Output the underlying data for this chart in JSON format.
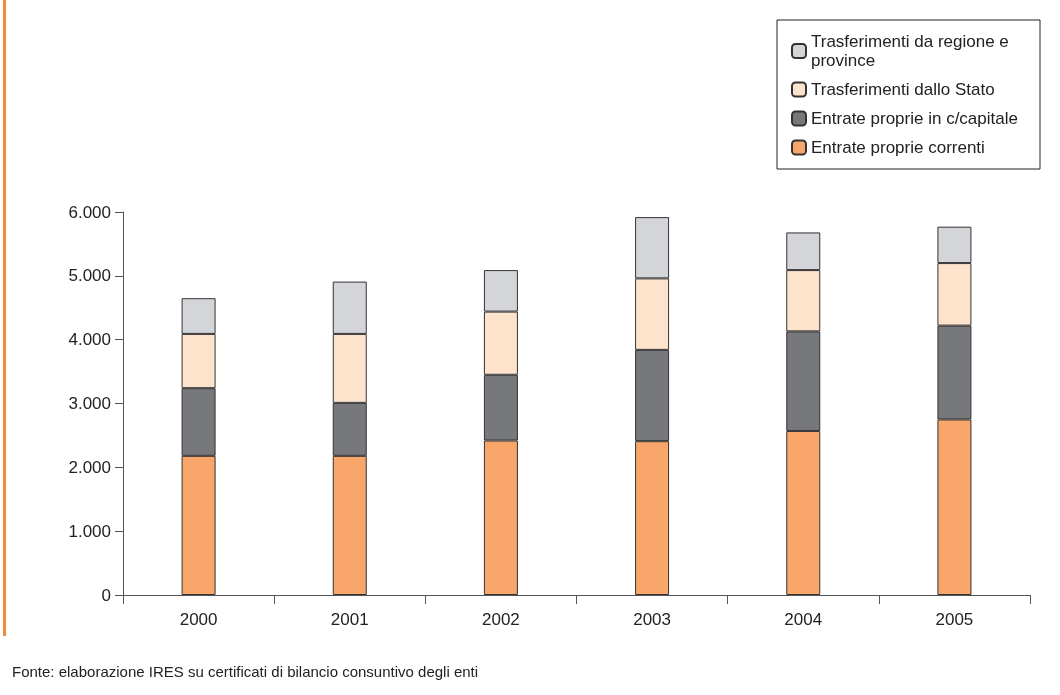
{
  "chart_data": {
    "type": "bar",
    "stacked": true,
    "categories": [
      "2000",
      "2001",
      "2002",
      "2003",
      "2004",
      "2005"
    ],
    "series": [
      {
        "name": "Entrate proprie correnti",
        "color": "#f9a66b",
        "values": [
          2180,
          2180,
          2420,
          2410,
          2570,
          2750
        ]
      },
      {
        "name": "Entrate proprie in c/capitale",
        "color": "#77787b",
        "values": [
          1060,
          830,
          1030,
          1430,
          1560,
          1470
        ]
      },
      {
        "name": "Trasferimenti dallo Stato",
        "color": "#fde3cc",
        "values": [
          850,
          1080,
          990,
          1120,
          960,
          980
        ]
      },
      {
        "name": "Trasferimenti da regione e province",
        "color": "#d3d5d8",
        "values": [
          560,
          820,
          650,
          960,
          590,
          570
        ]
      }
    ],
    "ylim": [
      0,
      6000
    ],
    "yticks": [
      {
        "value": 0,
        "label": "0"
      },
      {
        "value": 1000,
        "label": "1.000"
      },
      {
        "value": 2000,
        "label": "2.000"
      },
      {
        "value": 3000,
        "label": "3.000"
      },
      {
        "value": 4000,
        "label": "4.000"
      },
      {
        "value": 5000,
        "label": "5.000"
      },
      {
        "value": 6000,
        "label": "6.000"
      }
    ],
    "grid": false,
    "legend": "top right",
    "annotations": [
      "Fonte: elaborazione IRES su certificati di bilancio consuntivo degli enti"
    ]
  }
}
